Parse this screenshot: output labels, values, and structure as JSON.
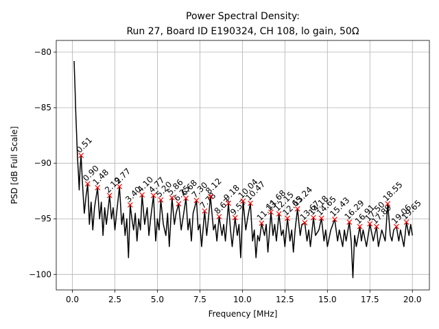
{
  "chart_data": {
    "type": "line",
    "title": [
      "Power Spectral Density:",
      "Run 27, Board ID E190324, CH 108, lo gain, 50Ω"
    ],
    "xlabel": "Frequency [MHz]",
    "ylabel": "PSD [dB Full Scale]",
    "xlim": [
      -0.95,
      21.0
    ],
    "ylim": [
      -101.4,
      -78.95
    ],
    "xticks": [
      {
        "value": 0,
        "label": "0.0"
      },
      2.5,
      {
        "value": 5,
        "label": "5.0"
      },
      7.5,
      {
        "value": 10,
        "label": "10.0"
      },
      12.5,
      {
        "value": 15,
        "label": "15.0"
      },
      17.5,
      {
        "value": 20,
        "label": "20.0"
      }
    ],
    "yticks": [
      {
        "value": -80,
        "label": "−80"
      },
      {
        "value": -85,
        "label": "−85"
      },
      {
        "value": -90,
        "label": "−90"
      },
      {
        "value": -95,
        "label": "−95"
      },
      {
        "value": -100,
        "label": "−100"
      }
    ],
    "grid": true,
    "series": [
      {
        "color": "#000000",
        "x": [
          0.1,
          0.15,
          0.2,
          0.25,
          0.3,
          0.35,
          0.4,
          0.45,
          0.51,
          0.6,
          0.7,
          0.8,
          0.9,
          1.0,
          1.1,
          1.2,
          1.3,
          1.48,
          1.6,
          1.7,
          1.8,
          1.9,
          2.0,
          2.19,
          2.3,
          2.4,
          2.5,
          2.6,
          2.77,
          2.9,
          3.0,
          3.1,
          3.2,
          3.3,
          3.4,
          3.5,
          3.6,
          3.7,
          3.8,
          3.9,
          4.0,
          4.1,
          4.25,
          4.4,
          4.5,
          4.6,
          4.77,
          4.9,
          5.0,
          5.1,
          5.2,
          5.35,
          5.5,
          5.6,
          5.7,
          5.86,
          6.0,
          6.1,
          6.25,
          6.4,
          6.5,
          6.68,
          6.8,
          6.9,
          7.0,
          7.1,
          7.3,
          7.4,
          7.5,
          7.6,
          7.78,
          7.9,
          8.0,
          8.12,
          8.3,
          8.4,
          8.5,
          8.63,
          8.8,
          8.9,
          9.0,
          9.18,
          9.3,
          9.4,
          9.57,
          9.7,
          9.8,
          9.9,
          10.04,
          10.2,
          10.3,
          10.47,
          10.6,
          10.7,
          10.8,
          10.9,
          11.0,
          11.13,
          11.3,
          11.4,
          11.5,
          11.68,
          11.8,
          11.9,
          12.0,
          12.15,
          12.3,
          12.4,
          12.5,
          12.65,
          12.8,
          12.9,
          13.0,
          13.1,
          13.24,
          13.4,
          13.5,
          13.67,
          13.8,
          13.9,
          14.0,
          14.18,
          14.3,
          14.5,
          14.65,
          14.8,
          14.9,
          15.0,
          15.2,
          15.43,
          15.6,
          15.7,
          15.9,
          16.0,
          16.1,
          16.29,
          16.4,
          16.5,
          16.6,
          16.7,
          16.91,
          17.0,
          17.1,
          17.3,
          17.5,
          17.7,
          17.89,
          18.0,
          18.2,
          18.4,
          18.55,
          18.7,
          18.8,
          18.9,
          19.06,
          19.2,
          19.3,
          19.5,
          19.65,
          19.8,
          19.9,
          20.0
        ],
        "values": [
          -80.8,
          -83,
          -85.5,
          -87.5,
          -89.5,
          -90.8,
          -92.4,
          -90.5,
          -89.3,
          -92,
          -94.5,
          -93,
          -91.85,
          -95.5,
          -93.5,
          -96,
          -94,
          -92.2,
          -95,
          -93.5,
          -96.5,
          -94,
          -95.5,
          -92.9,
          -95,
          -94,
          -96,
          -94.5,
          -92.1,
          -95.5,
          -94.5,
          -96.5,
          -95,
          -98.5,
          -93.75,
          -95,
          -96,
          -94.5,
          -97,
          -95,
          -96,
          -92.85,
          -95.5,
          -94,
          -96.5,
          -95,
          -92.9,
          -97,
          -95,
          -96,
          -93.3,
          -95.5,
          -96.5,
          -94.5,
          -97.5,
          -93.1,
          -95.5,
          -94.5,
          -93.65,
          -96,
          -95,
          -93.15,
          -96,
          -95,
          -97,
          -94.5,
          -93.35,
          -96,
          -95.5,
          -97.5,
          -94.3,
          -96.5,
          -95,
          -93.0,
          -96,
          -95.5,
          -97,
          -94.8,
          -96.5,
          -95.5,
          -97,
          -93.6,
          -96,
          -97.5,
          -94.9,
          -96.5,
          -95.5,
          -98.5,
          -93.4,
          -96,
          -95,
          -93.6,
          -97,
          -96,
          -98.5,
          -96.5,
          -97,
          -95.4,
          -96.5,
          -95.5,
          -98,
          -94.4,
          -96.5,
          -95.5,
          -97,
          -94.55,
          -96.5,
          -96,
          -97.5,
          -94.95,
          -97,
          -96,
          -98,
          -96,
          -94.1,
          -96.5,
          -95.5,
          -95.35,
          -97,
          -96,
          -97.5,
          -94.9,
          -96.5,
          -96,
          -94.95,
          -97,
          -96,
          -97.5,
          -96,
          -95.05,
          -97,
          -96,
          -97.5,
          -96,
          -97,
          -95.3,
          -97,
          -100.3,
          -96.5,
          -97.5,
          -95.7,
          -97,
          -96,
          -97.5,
          -95.45,
          -97,
          -95.7,
          -97.5,
          -96,
          -97,
          -93.65,
          -96.5,
          -97,
          -96,
          -95.7,
          -97,
          -96,
          -97.5,
          -95.3,
          -96.5,
          -95.5,
          -96.5
        ]
      }
    ],
    "peaks": {
      "color": "#ff0000",
      "x": [
        0.51,
        0.9,
        1.48,
        2.19,
        2.77,
        3.4,
        4.1,
        4.77,
        5.2,
        5.86,
        6.25,
        6.68,
        7.3,
        7.78,
        8.12,
        8.63,
        9.18,
        9.57,
        10.04,
        10.47,
        11.13,
        11.68,
        12.15,
        12.65,
        13.24,
        13.67,
        14.18,
        14.65,
        15.43,
        16.29,
        16.91,
        17.5,
        17.89,
        18.55,
        19.06,
        19.65
      ],
      "x_labels": [
        "0.51",
        "0.90",
        "1.48",
        "2.19",
        "2.77",
        "3.40",
        "4.10",
        "4.77",
        "5.20",
        "5.86",
        "6.25",
        "6.68",
        "7.30",
        "7.78",
        "8.12",
        "8.63",
        "9.18",
        "9.57",
        "10.04",
        "10.47",
        "11.13",
        "11.68",
        "12.15",
        "12.65",
        "13.24",
        "13.67",
        "14.18",
        "14.65",
        "15.43",
        "16.29",
        "16.91",
        "17.50",
        "17.89",
        "18.55",
        "19.06",
        "19.65"
      ],
      "values": [
        -89.3,
        -91.85,
        -92.2,
        -92.9,
        -92.1,
        -93.75,
        -92.85,
        -92.9,
        -93.3,
        -93.1,
        -93.65,
        -93.15,
        -93.35,
        -94.3,
        -93.0,
        -94.8,
        -93.6,
        -94.9,
        -93.4,
        -93.6,
        -95.4,
        -94.4,
        -94.55,
        -94.95,
        -94.1,
        -95.35,
        -94.9,
        -94.95,
        -95.05,
        -95.3,
        -95.7,
        -95.45,
        -95.7,
        -93.65,
        -95.7,
        -95.3
      ]
    }
  }
}
